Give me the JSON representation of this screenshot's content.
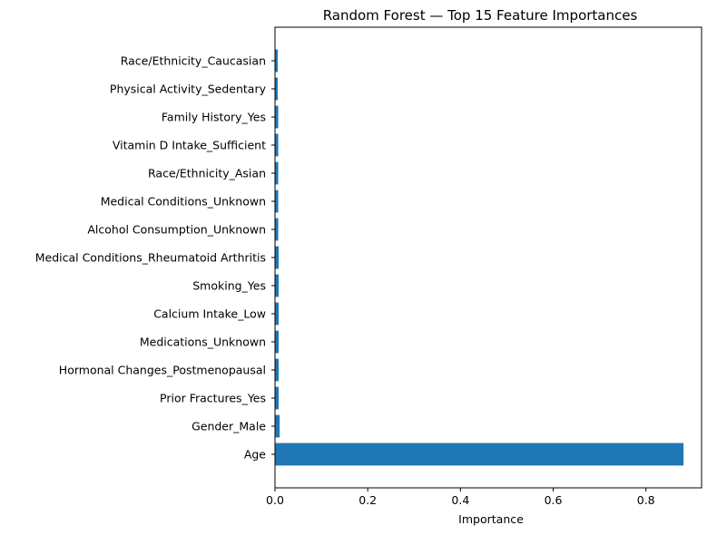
{
  "chart_data": {
    "type": "bar",
    "orientation": "horizontal",
    "title": "Random Forest — Top 15 Feature Importances",
    "xlabel": "Importance",
    "ylabel": "",
    "xlim": [
      0,
      0.92
    ],
    "xticks": [
      0.0,
      0.2,
      0.4,
      0.6,
      0.8
    ],
    "xtick_labels": [
      "0.0",
      "0.2",
      "0.4",
      "0.6",
      "0.8"
    ],
    "grid": false,
    "legend": "none",
    "bar_color": "#1f77b4",
    "categories": [
      "Age",
      "Gender_Male",
      "Prior Fractures_Yes",
      "Hormonal Changes_Postmenopausal",
      "Medications_Unknown",
      "Calcium Intake_Low",
      "Smoking_Yes",
      "Medical Conditions_Rheumatoid Arthritis",
      "Alcohol Consumption_Unknown",
      "Medical Conditions_Unknown",
      "Race/Ethnicity_Asian",
      "Vitamin D Intake_Sufficient",
      "Family History_Yes",
      "Physical Activity_Sedentary",
      "Race/Ethnicity_Caucasian"
    ],
    "values": [
      0.881,
      0.01,
      0.008,
      0.008,
      0.008,
      0.008,
      0.008,
      0.008,
      0.007,
      0.007,
      0.007,
      0.007,
      0.007,
      0.006,
      0.006
    ]
  }
}
